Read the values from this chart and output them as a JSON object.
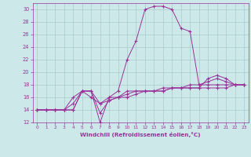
{
  "xlabel": "Windchill (Refroidissement éolien,°C)",
  "bg_color": "#cce8e8",
  "grid_color": "#aacccc",
  "line_color": "#993399",
  "xlim": [
    -0.5,
    23.5
  ],
  "ylim": [
    12,
    31
  ],
  "xticks": [
    0,
    1,
    2,
    3,
    4,
    5,
    6,
    7,
    8,
    9,
    10,
    11,
    12,
    13,
    14,
    15,
    16,
    17,
    18,
    19,
    20,
    21,
    22,
    23
  ],
  "yticks": [
    12,
    14,
    16,
    18,
    20,
    22,
    24,
    26,
    28,
    30
  ],
  "series": [
    {
      "x": [
        0,
        1,
        2,
        3,
        4,
        5,
        6,
        7,
        8,
        9,
        10,
        11,
        12,
        13,
        14,
        15,
        16,
        17,
        18,
        19,
        20,
        21,
        22,
        23
      ],
      "y": [
        14,
        14,
        14,
        14,
        14,
        17,
        17,
        12,
        16,
        17,
        22,
        25,
        30,
        30.5,
        30.5,
        30,
        27,
        26.5,
        18,
        18,
        18,
        18,
        18,
        18
      ]
    },
    {
      "x": [
        0,
        1,
        2,
        3,
        4,
        5,
        6,
        7,
        8,
        9,
        10,
        11,
        12,
        13,
        14,
        15,
        16,
        17,
        18,
        19,
        20,
        21,
        22,
        23
      ],
      "y": [
        14,
        14,
        14,
        14,
        15,
        17,
        17,
        13.5,
        15.5,
        16,
        17,
        17,
        17,
        17,
        17,
        17.5,
        17.5,
        17.5,
        17.5,
        19,
        19.5,
        19,
        18,
        18
      ]
    },
    {
      "x": [
        0,
        1,
        2,
        3,
        4,
        5,
        6,
        7,
        8,
        9,
        10,
        11,
        12,
        13,
        14,
        15,
        16,
        17,
        18,
        19,
        20,
        21,
        22,
        23
      ],
      "y": [
        14,
        14,
        14,
        14,
        14,
        17,
        16,
        15,
        15.5,
        16,
        16,
        16.5,
        17,
        17,
        17,
        17.5,
        17.5,
        17.5,
        17.5,
        17.5,
        17.5,
        17.5,
        18,
        18
      ]
    },
    {
      "x": [
        0,
        1,
        2,
        3,
        4,
        5,
        6,
        7,
        8,
        9,
        10,
        11,
        12,
        13,
        14,
        15,
        16,
        17,
        18,
        19,
        20,
        21,
        22,
        23
      ],
      "y": [
        14,
        14,
        14,
        14,
        16,
        17,
        17,
        15,
        16,
        16,
        16.5,
        17,
        17,
        17,
        17.5,
        17.5,
        17.5,
        18,
        18,
        18.5,
        19,
        18.5,
        18,
        18
      ]
    }
  ]
}
